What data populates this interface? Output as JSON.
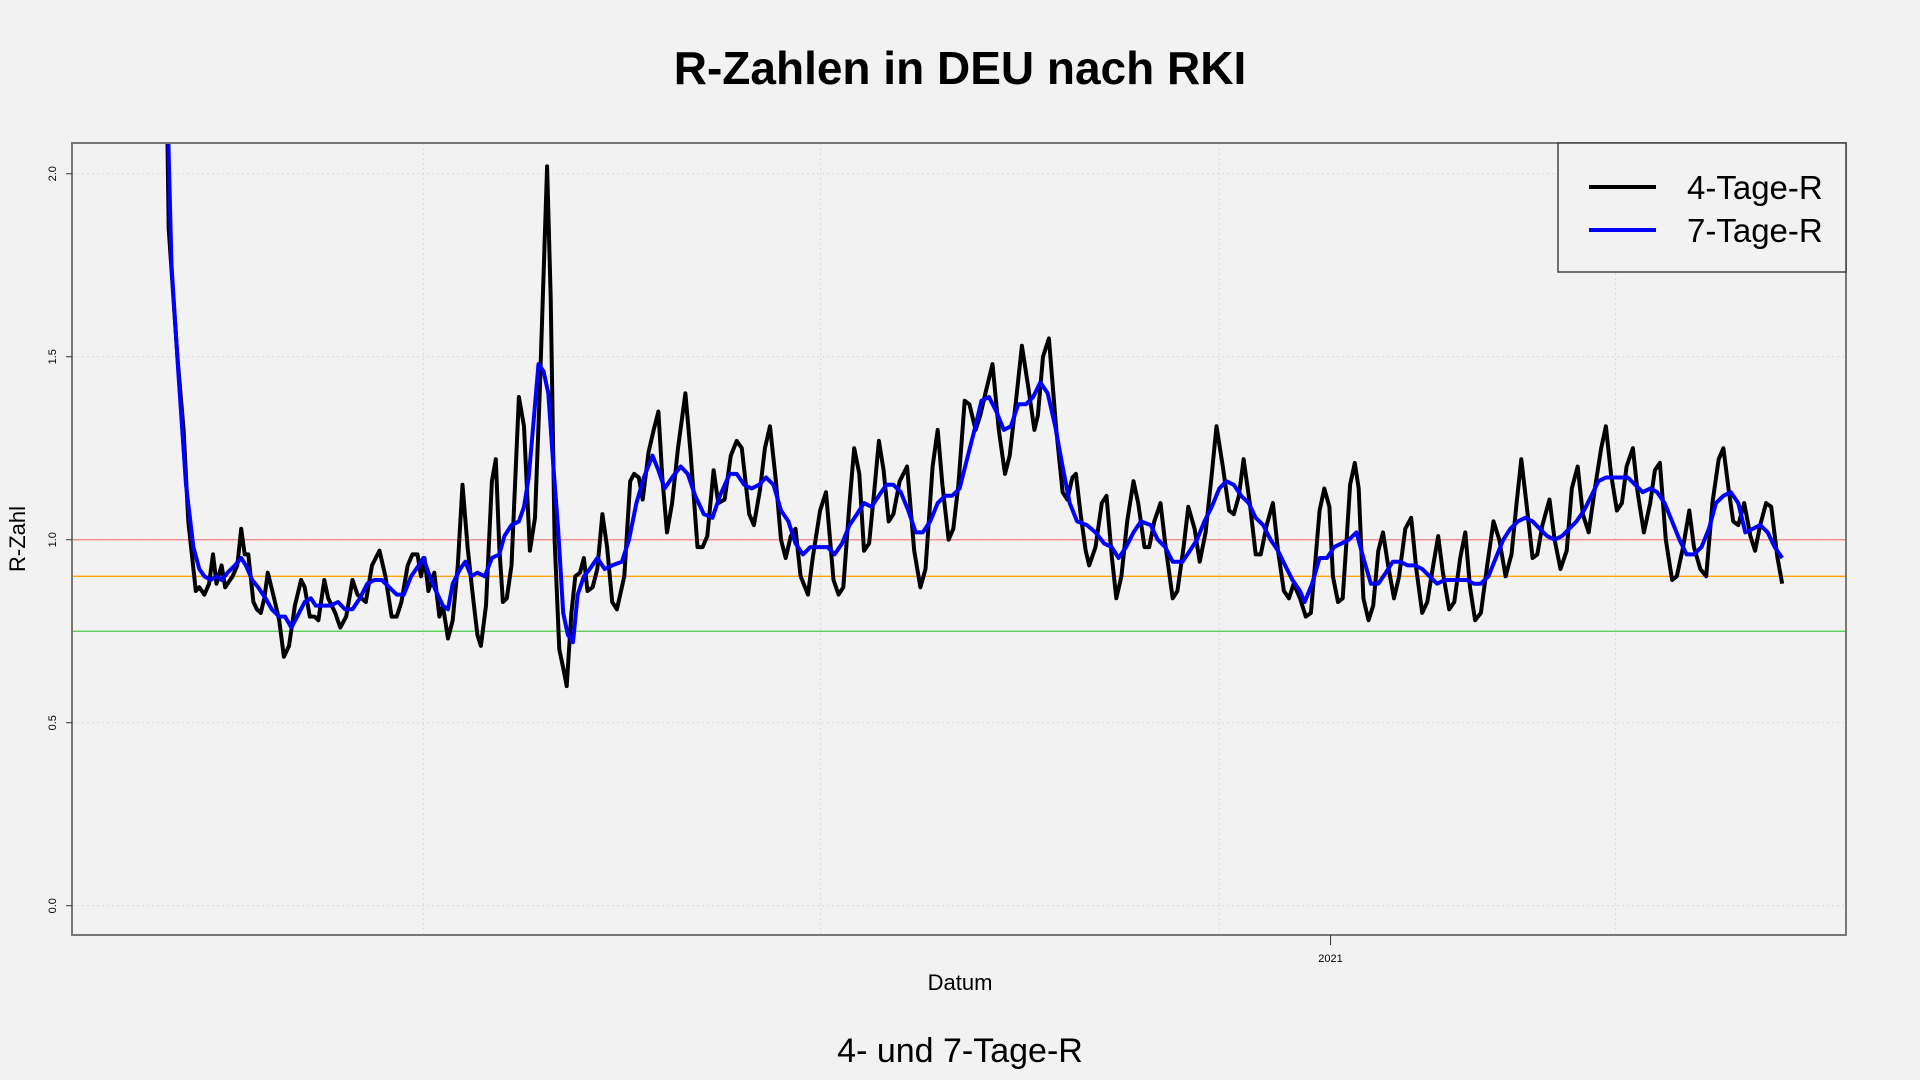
{
  "chart_data": {
    "type": "line",
    "title": "R-Zahlen in DEU nach RKI",
    "subtitle": "4- und 7-Tage-R",
    "xlabel": "Datum",
    "ylabel": "R-Zahl",
    "x_unit": "days since first data point",
    "xlim": [
      -24.1,
      428.8
    ],
    "ylim": [
      -0.08,
      2.084
    ],
    "y_ticks": [
      0.0,
      0.5,
      1.0,
      1.5,
      2.0
    ],
    "y_tick_labels": [
      "0.0",
      "0.5",
      "1.0",
      "1.5",
      "2.0"
    ],
    "x_ticks": [
      {
        "x": 297.2,
        "label": "2021"
      }
    ],
    "x_grid": [
      65.6,
      167,
      268.8,
      370
    ],
    "grid": true,
    "reference_lines": [
      {
        "y": 1.0,
        "color": "#f08080"
      },
      {
        "y": 0.9,
        "color": "#ffa500"
      },
      {
        "y": 0.75,
        "color": "#44cc44"
      }
    ],
    "legend": {
      "position": "top-right",
      "entries": [
        "4-Tage-R",
        "7-Tage-R"
      ]
    },
    "series": [
      {
        "name": "4-Tage-R",
        "color": "#000000",
        "x": [
          0,
          0.6,
          2.8,
          4.4,
          5.6,
          7.5,
          8.4,
          9.7,
          10.9,
          11.9,
          12.8,
          14.1,
          15,
          16.9,
          18.1,
          19.1,
          20,
          20.9,
          22.2,
          23.1,
          24.1,
          25,
          25.9,
          27.5,
          28.8,
          30,
          31.3,
          32.8,
          34.4,
          35.3,
          36.6,
          37.8,
          38.8,
          40.3,
          41.3,
          43.1,
          44.4,
          45.9,
          47.5,
          48.8,
          50.9,
          52.5,
          54.4,
          55.9,
          57.5,
          58.8,
          60,
          61.6,
          62.8,
          64.1,
          65,
          65.9,
          66.9,
          68.4,
          69.7,
          70.6,
          71.9,
          73.1,
          74.4,
          75.6,
          76.9,
          78.1,
          79.4,
          80.3,
          81.6,
          83.1,
          84.1,
          85,
          85.9,
          86.9,
          88.1,
          90,
          91.3,
          92.8,
          94.1,
          95.3,
          97.2,
          98.1,
          99.1,
          100.3,
          101.3,
          102.2,
          103.4,
          104.4,
          105.6,
          106.6,
          107.5,
          108.8,
          110,
          111.3,
          112.5,
          113.8,
          115,
          116.9,
          118.4,
          119.4,
          120.6,
          121.6,
          123.1,
          124.4,
          125.6,
          126.6,
          127.8,
          129.1,
          130.6,
          132.5,
          133.8,
          135.6,
          136.9,
          138.1,
          139.7,
          140.9,
          142.5,
          144.1,
          145.6,
          146.9,
          148.8,
          150,
          151.6,
          152.8,
          154.1,
          155.6,
          156.9,
          158.1,
          159.4,
          160.6,
          161.9,
          163.8,
          165,
          166.9,
          168.4,
          170.3,
          171.6,
          172.8,
          174.4,
          175.6,
          176.9,
          178.1,
          179.4,
          180.6,
          181.9,
          183.1,
          184.4,
          185.6,
          187.2,
          189.1,
          190.9,
          192.5,
          193.8,
          195.6,
          196.9,
          198.1,
          199.7,
          200.9,
          202.2,
          203.8,
          205,
          206.6,
          207.8,
          209.1,
          210.9,
          212.5,
          214.1,
          215.3,
          216.9,
          218.4,
          220,
          221.6,
          222.5,
          223.8,
          225.3,
          227.2,
          228.8,
          230,
          231.3,
          232.2,
          233.4,
          234.7,
          235.6,
          237.2,
          238.8,
          240,
          241.3,
          242.5,
          243.8,
          245.3,
          246.9,
          248.1,
          249.7,
          250.9,
          252.2,
          253.8,
          255,
          256.9,
          258.1,
          259.7,
          260.9,
          262.5,
          263.8,
          265.3,
          266.9,
          268.1,
          269.7,
          271.3,
          272.5,
          273.8,
          275,
          276.6,
          278.1,
          279.4,
          280.9,
          282.5,
          283.8,
          285.3,
          286.6,
          287.8,
          289.4,
          290.9,
          292.2,
          293.4,
          294.4,
          295.6,
          296.9,
          297.8,
          299.1,
          300.3,
          301.3,
          302.2,
          303.4,
          304.4,
          305.6,
          306.9,
          308.1,
          309.4,
          310.6,
          311.9,
          313.4,
          314.7,
          316.3,
          317.8,
          319.1,
          320.6,
          321.9,
          323.4,
          324.7,
          325.9,
          327.5,
          328.8,
          330.3,
          331.6,
          332.8,
          334.1,
          335.6,
          337.2,
          338.8,
          340.3,
          341.9,
          343.4,
          344.7,
          345.9,
          347.2,
          348.8,
          350,
          351.3,
          353.1,
          354.4,
          355.9,
          357.5,
          358.8,
          360.3,
          361.6,
          363.1,
          364.7,
          366.3,
          367.5,
          368.8,
          370.3,
          371.6,
          372.8,
          374.4,
          375.6,
          377.2,
          378.8,
          380,
          381.3,
          382.8,
          384.4,
          385.6,
          387.2,
          388.8,
          390,
          391.6,
          393.1,
          394.7,
          396.3,
          397.5,
          398.8,
          400,
          401.3,
          402.8,
          404.4,
          405.6,
          406.9,
          408.4,
          409.7,
          411.3,
          412.5
        ],
        "y": [
          2.3,
          1.85,
          1.5,
          1.3,
          1.05,
          0.86,
          0.87,
          0.85,
          0.88,
          0.96,
          0.88,
          0.93,
          0.87,
          0.9,
          0.93,
          1.03,
          0.96,
          0.96,
          0.83,
          0.81,
          0.8,
          0.84,
          0.91,
          0.84,
          0.78,
          0.68,
          0.71,
          0.82,
          0.89,
          0.87,
          0.79,
          0.79,
          0.78,
          0.89,
          0.84,
          0.8,
          0.76,
          0.79,
          0.89,
          0.85,
          0.83,
          0.93,
          0.97,
          0.9,
          0.79,
          0.79,
          0.83,
          0.93,
          0.96,
          0.96,
          0.9,
          0.95,
          0.86,
          0.91,
          0.79,
          0.82,
          0.73,
          0.78,
          0.93,
          1.15,
          0.98,
          0.86,
          0.74,
          0.71,
          0.82,
          1.16,
          1.22,
          0.98,
          0.83,
          0.84,
          0.93,
          1.39,
          1.31,
          0.97,
          1.06,
          1.4,
          2.02,
          1.66,
          1.0,
          0.7,
          0.65,
          0.6,
          0.8,
          0.9,
          0.91,
          0.95,
          0.86,
          0.87,
          0.92,
          1.07,
          0.98,
          0.83,
          0.81,
          0.9,
          1.16,
          1.18,
          1.17,
          1.11,
          1.24,
          1.3,
          1.35,
          1.17,
          1.02,
          1.1,
          1.25,
          1.4,
          1.24,
          0.98,
          0.98,
          1.01,
          1.19,
          1.1,
          1.11,
          1.23,
          1.27,
          1.25,
          1.07,
          1.04,
          1.14,
          1.25,
          1.31,
          1.16,
          1.0,
          0.95,
          1.01,
          1.03,
          0.9,
          0.85,
          0.95,
          1.08,
          1.13,
          0.89,
          0.85,
          0.87,
          1.1,
          1.25,
          1.18,
          0.97,
          0.99,
          1.12,
          1.27,
          1.19,
          1.05,
          1.07,
          1.16,
          1.2,
          0.97,
          0.87,
          0.92,
          1.2,
          1.3,
          1.15,
          1.0,
          1.03,
          1.15,
          1.38,
          1.37,
          1.3,
          1.34,
          1.4,
          1.48,
          1.3,
          1.18,
          1.23,
          1.38,
          1.53,
          1.42,
          1.3,
          1.34,
          1.5,
          1.55,
          1.3,
          1.13,
          1.11,
          1.17,
          1.18,
          1.07,
          0.97,
          0.93,
          0.98,
          1.1,
          1.12,
          0.96,
          0.84,
          0.9,
          1.05,
          1.16,
          1.1,
          0.98,
          0.98,
          1.05,
          1.1,
          0.99,
          0.84,
          0.86,
          0.98,
          1.09,
          1.03,
          0.94,
          1.02,
          1.18,
          1.31,
          1.2,
          1.08,
          1.07,
          1.12,
          1.22,
          1.1,
          0.96,
          0.96,
          1.04,
          1.1,
          0.97,
          0.86,
          0.84,
          0.88,
          0.84,
          0.79,
          0.8,
          0.95,
          1.08,
          1.14,
          1.09,
          0.9,
          0.83,
          0.84,
          1.0,
          1.15,
          1.21,
          1.14,
          0.84,
          0.78,
          0.82,
          0.97,
          1.02,
          0.93,
          0.84,
          0.9,
          1.03,
          1.06,
          0.92,
          0.8,
          0.83,
          0.93,
          1.01,
          0.91,
          0.81,
          0.83,
          0.95,
          1.02,
          0.87,
          0.78,
          0.8,
          0.93,
          1.05,
          1.0,
          0.9,
          0.96,
          1.1,
          1.22,
          1.1,
          0.95,
          0.96,
          1.04,
          1.11,
          1.0,
          0.92,
          0.97,
          1.14,
          1.2,
          1.07,
          1.02,
          1.14,
          1.25,
          1.31,
          1.18,
          1.08,
          1.1,
          1.2,
          1.25,
          1.13,
          1.02,
          1.1,
          1.19,
          1.21,
          1.0,
          0.89,
          0.9,
          0.98,
          1.08,
          0.98,
          0.92,
          0.9,
          1.1,
          1.22,
          1.25,
          1.14,
          1.05,
          1.04,
          1.1,
          1.01,
          0.97,
          1.04,
          1.1,
          1.09,
          0.95,
          0.88
        ]
      },
      {
        "name": "7-Tage-R",
        "color": "#0000ff",
        "x": [
          0,
          1.3,
          3.1,
          5,
          6.9,
          8.4,
          9.7,
          11.3,
          12.8,
          14.1,
          15.6,
          17.5,
          19.1,
          20.3,
          21.9,
          23.4,
          25.3,
          26.9,
          28.8,
          30.3,
          31.9,
          33.4,
          35.3,
          36.9,
          38.1,
          40,
          41.9,
          43.8,
          45.6,
          47.5,
          49.4,
          51.3,
          53.1,
          55,
          56.9,
          58.8,
          60.6,
          62.5,
          64.4,
          65.6,
          66.9,
          68.8,
          70.6,
          71.9,
          73.1,
          75,
          76.3,
          77.8,
          79.4,
          81.3,
          83.1,
          85,
          86.3,
          88.1,
          90,
          91.3,
          92.5,
          93.8,
          95,
          96.3,
          97.5,
          98.8,
          100,
          101.3,
          102.5,
          103.8,
          105,
          106.6,
          108.1,
          110,
          111.9,
          113.8,
          116.3,
          118.1,
          120,
          121.9,
          124.1,
          125.6,
          127.2,
          129.1,
          131.3,
          133.1,
          135,
          137.2,
          139.4,
          141.3,
          143.8,
          145.6,
          147.5,
          149.4,
          151.3,
          153.1,
          155,
          156.9,
          158.8,
          160.6,
          162.5,
          164.4,
          166.9,
          168.8,
          170.6,
          172.5,
          174.4,
          176.3,
          178.1,
          180,
          181.9,
          183.8,
          185.6,
          187.5,
          189.4,
          191.3,
          193.1,
          195,
          196.9,
          198.8,
          200.6,
          202.5,
          204.4,
          206.3,
          208.1,
          210,
          211.9,
          213.8,
          215.6,
          217.5,
          219.4,
          221.3,
          223.1,
          225,
          226.9,
          228.8,
          230.6,
          232.5,
          235,
          237.2,
          239.4,
          241.3,
          243.1,
          245,
          246.9,
          248.8,
          251.3,
          253.1,
          255,
          256.9,
          259.4,
          261.3,
          263.1,
          265,
          266.9,
          268.8,
          270.6,
          272.5,
          274.4,
          276.3,
          278.1,
          280,
          281.9,
          283.8,
          285.6,
          287.5,
          289.4,
          290.6,
          292.5,
          294.4,
          296.3,
          298.1,
          300,
          301.9,
          303.8,
          305.6,
          307.5,
          309.4,
          311.3,
          313.1,
          315,
          316.9,
          318.8,
          320.6,
          322.5,
          324.4,
          326.3,
          328.1,
          330,
          331.9,
          333.8,
          335.6,
          337.5,
          339.4,
          341.3,
          343.1,
          345,
          346.9,
          348.8,
          350.6,
          352.5,
          354.4,
          356.3,
          358.1,
          360,
          361.9,
          363.8,
          365.6,
          367.5,
          369.4,
          371.3,
          373.1,
          375,
          376.9,
          378.8,
          380.6,
          382.5,
          384.4,
          386.3,
          388.1,
          390,
          391.9,
          393.8,
          395.6,
          397.5,
          399.4,
          401.3,
          403.1,
          405,
          406.9,
          408.8,
          410.6,
          412.5
        ],
        "y": [
          2.3,
          1.75,
          1.45,
          1.15,
          0.98,
          0.92,
          0.9,
          0.89,
          0.9,
          0.89,
          0.91,
          0.93,
          0.95,
          0.93,
          0.89,
          0.87,
          0.84,
          0.81,
          0.79,
          0.79,
          0.76,
          0.79,
          0.83,
          0.84,
          0.82,
          0.82,
          0.82,
          0.83,
          0.81,
          0.81,
          0.84,
          0.88,
          0.89,
          0.89,
          0.87,
          0.85,
          0.85,
          0.9,
          0.93,
          0.95,
          0.91,
          0.86,
          0.82,
          0.81,
          0.88,
          0.92,
          0.94,
          0.9,
          0.91,
          0.9,
          0.95,
          0.96,
          1.01,
          1.04,
          1.05,
          1.09,
          1.17,
          1.33,
          1.48,
          1.46,
          1.4,
          1.2,
          1.03,
          0.8,
          0.74,
          0.72,
          0.85,
          0.9,
          0.92,
          0.95,
          0.92,
          0.93,
          0.94,
          1.0,
          1.1,
          1.17,
          1.23,
          1.19,
          1.14,
          1.17,
          1.2,
          1.18,
          1.12,
          1.07,
          1.06,
          1.12,
          1.18,
          1.18,
          1.15,
          1.14,
          1.15,
          1.17,
          1.15,
          1.08,
          1.05,
          0.99,
          0.96,
          0.98,
          0.98,
          0.98,
          0.96,
          0.99,
          1.04,
          1.07,
          1.1,
          1.09,
          1.12,
          1.15,
          1.15,
          1.13,
          1.08,
          1.02,
          1.02,
          1.05,
          1.1,
          1.12,
          1.12,
          1.14,
          1.22,
          1.3,
          1.38,
          1.39,
          1.35,
          1.3,
          1.31,
          1.37,
          1.37,
          1.39,
          1.43,
          1.4,
          1.31,
          1.2,
          1.1,
          1.05,
          1.04,
          1.02,
          0.99,
          0.98,
          0.95,
          0.98,
          1.02,
          1.05,
          1.04,
          1.0,
          0.98,
          0.94,
          0.94,
          0.97,
          1.0,
          1.05,
          1.09,
          1.14,
          1.16,
          1.15,
          1.12,
          1.1,
          1.06,
          1.04,
          1.0,
          0.97,
          0.93,
          0.89,
          0.86,
          0.83,
          0.88,
          0.95,
          0.95,
          0.98,
          0.99,
          1.0,
          1.02,
          0.95,
          0.88,
          0.88,
          0.91,
          0.94,
          0.94,
          0.93,
          0.93,
          0.92,
          0.9,
          0.88,
          0.89,
          0.89,
          0.89,
          0.89,
          0.88,
          0.88,
          0.9,
          0.95,
          1.0,
          1.03,
          1.05,
          1.06,
          1.05,
          1.03,
          1.01,
          1.0,
          1.01,
          1.03,
          1.05,
          1.08,
          1.12,
          1.16,
          1.17,
          1.17,
          1.17,
          1.17,
          1.15,
          1.13,
          1.14,
          1.13,
          1.1,
          1.05,
          1.0,
          0.96,
          0.96,
          0.98,
          1.03,
          1.1,
          1.12,
          1.13,
          1.1,
          1.02,
          1.03,
          1.04,
          1.02,
          0.98,
          0.95
        ]
      }
    ]
  }
}
